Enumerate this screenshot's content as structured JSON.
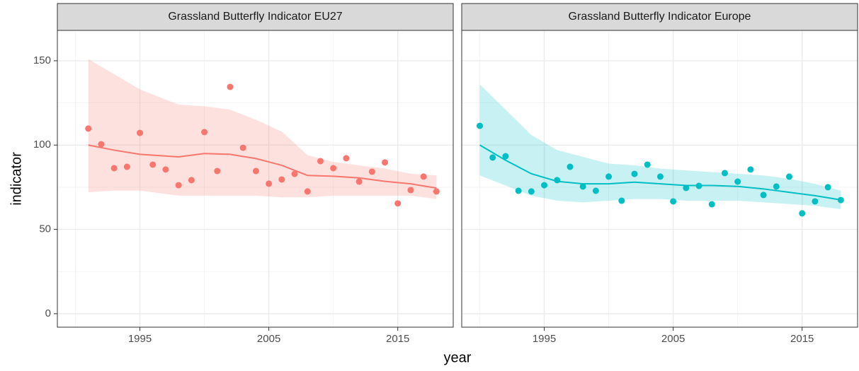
{
  "xlabel": "year",
  "ylabel": "indicator",
  "chart_data": [
    {
      "type": "scatter",
      "title": "Grassland Butterfly Indicator EU27",
      "color": "#F8766D",
      "xlim": [
        1988.6,
        2019.3
      ],
      "ylim": [
        -8,
        168
      ],
      "xticks": [
        1995,
        2005,
        2015
      ],
      "yticks": [
        0,
        50,
        100,
        150
      ],
      "xminor": [
        1990,
        2000,
        2010
      ],
      "yminor": [
        25,
        75,
        125
      ],
      "grid": true,
      "points": {
        "x": [
          1991,
          1992,
          1993,
          1994,
          1995,
          1996,
          1997,
          1998,
          1999,
          2000,
          2001,
          2002,
          2003,
          2004,
          2005,
          2006,
          2007,
          2008,
          2009,
          2010,
          2011,
          2012,
          2013,
          2014,
          2015,
          2016,
          2017,
          2018
        ],
        "values": [
          109.8,
          100.5,
          86.3,
          87.1,
          107.2,
          88.4,
          85.5,
          76.2,
          79.2,
          107.7,
          84.6,
          134.5,
          98.4,
          84.6,
          77.1,
          79.6,
          82.9,
          72.5,
          90.5,
          86.3,
          92.2,
          78.3,
          84.2,
          89.7,
          65.4,
          73.3,
          81.3,
          72.5
        ]
      },
      "smooth": {
        "x": [
          1991,
          1993,
          1995,
          1998,
          2000,
          2002,
          2004,
          2006,
          2008,
          2010,
          2012,
          2014,
          2016,
          2018
        ],
        "values": [
          100,
          97,
          94.5,
          93,
          95,
          94.5,
          92,
          88,
          82,
          81.5,
          80.5,
          78.5,
          77,
          74.5
        ],
        "upper": [
          151,
          142,
          133,
          124,
          123,
          121,
          115,
          108,
          94,
          90,
          88,
          86,
          83,
          82
        ],
        "lower": [
          72,
          73,
          73,
          70,
          70,
          70,
          70,
          69,
          69,
          70,
          70,
          70,
          70,
          68
        ]
      }
    },
    {
      "type": "scatter",
      "title": "Grassland Butterfly Indicator Europe",
      "color": "#00BFC4",
      "xlim": [
        1988.6,
        2019.3
      ],
      "ylim": [
        -8,
        168
      ],
      "xticks": [
        1995,
        2005,
        2015
      ],
      "yticks": [
        0,
        50,
        100,
        150
      ],
      "xminor": [
        1990,
        2000,
        2010
      ],
      "yminor": [
        25,
        75,
        125
      ],
      "grid": true,
      "points": {
        "x": [
          1990,
          1991,
          1992,
          1993,
          1994,
          1995,
          1996,
          1997,
          1998,
          1999,
          2000,
          2001,
          2002,
          2003,
          2004,
          2005,
          2006,
          2007,
          2008,
          2009,
          2010,
          2011,
          2012,
          2013,
          2014,
          2015,
          2016,
          2017,
          2018
        ],
        "values": [
          111.4,
          92.6,
          93.4,
          72.9,
          72.5,
          76.2,
          79.2,
          87.1,
          75.4,
          72.9,
          81.3,
          67.0,
          82.9,
          88.4,
          81.3,
          66.6,
          74.6,
          75.8,
          64.9,
          83.4,
          78.3,
          85.5,
          70.4,
          75.4,
          81.3,
          59.5,
          66.6,
          75.0,
          67.4
        ]
      },
      "smooth": {
        "x": [
          1990,
          1992,
          1994,
          1996,
          1998,
          2000,
          2002,
          2004,
          2006,
          2008,
          2010,
          2012,
          2014,
          2016,
          2018
        ],
        "values": [
          100,
          91,
          83,
          78.5,
          77,
          77,
          78,
          77,
          76,
          76,
          75.5,
          74,
          72,
          70,
          67.5
        ],
        "upper": [
          136,
          121,
          106,
          97,
          93,
          89,
          88,
          86,
          85,
          84,
          83,
          82,
          80,
          77,
          73
        ],
        "lower": [
          82,
          76,
          70,
          67,
          66,
          67,
          68,
          68,
          67,
          67,
          67,
          66,
          65,
          64,
          62
        ]
      }
    }
  ]
}
